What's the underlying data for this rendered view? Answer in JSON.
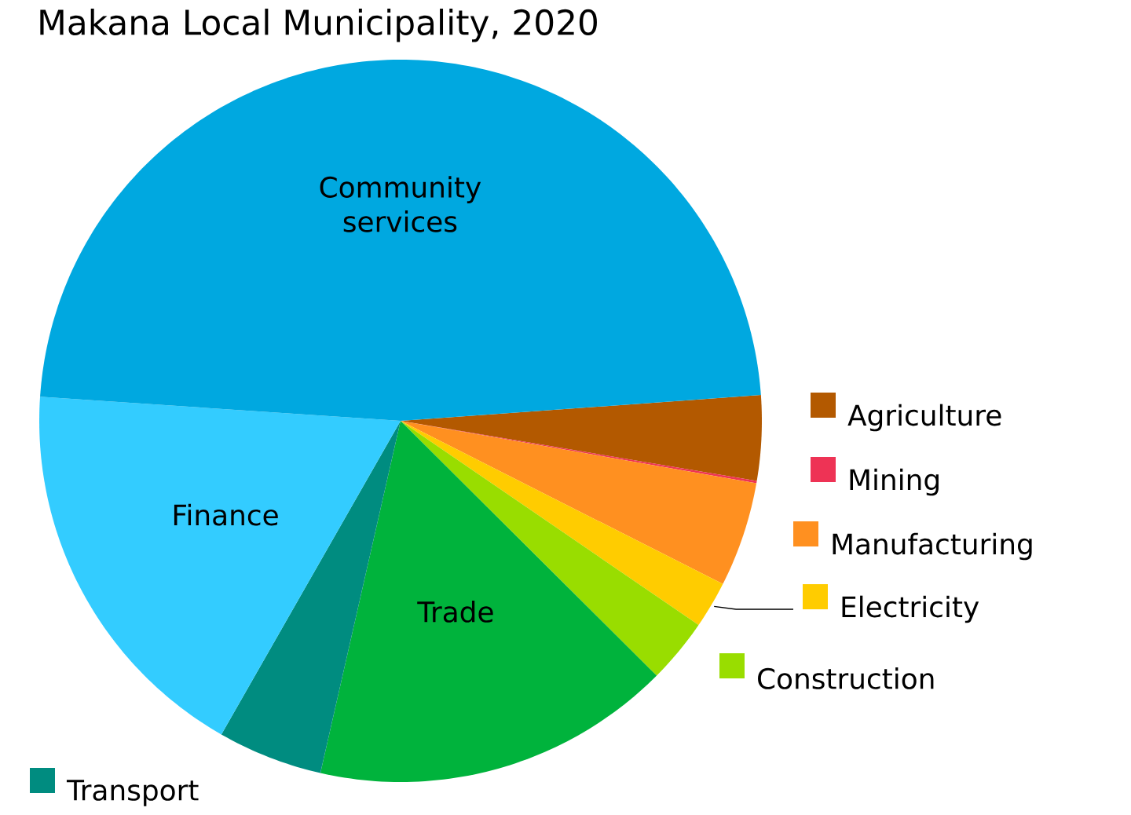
{
  "chart_data": {
    "type": "pie",
    "title": "Makana Local Municipality, 2020",
    "categories": [
      "Agriculture",
      "Mining",
      "Manufacturing",
      "Electricity",
      "Construction",
      "Trade",
      "Transport",
      "Finance",
      "Community services"
    ],
    "values": [
      3.8,
      0.1,
      4.7,
      2.1,
      2.9,
      16.1,
      4.7,
      17.8,
      47.8
    ],
    "legend": "right",
    "colors": [
      "#b35900",
      "#ee3355",
      "#ff9020",
      "#ffcc00",
      "#99dd00",
      "#00b33c",
      "#008c80",
      "#33ccff",
      "#00a8e0"
    ]
  }
}
